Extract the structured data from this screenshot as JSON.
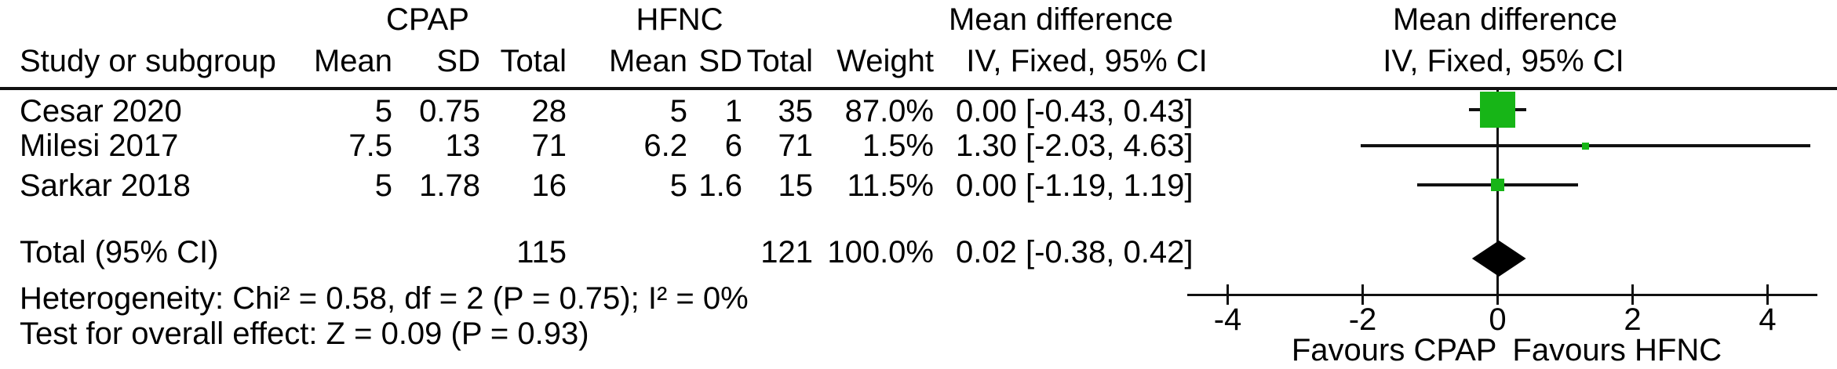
{
  "groups": {
    "cpap": "CPAP",
    "hfnc": "HFNC",
    "md_text": "Mean difference",
    "md_plot": "Mean difference"
  },
  "columns": {
    "study": "Study or subgroup",
    "cpap_mean": "Mean",
    "cpap_sd": "SD",
    "cpap_total": "Total",
    "hfnc_mean": "Mean",
    "hfnc_sd": "SD",
    "hfnc_total": "Total",
    "weight": "Weight",
    "ci_text": "IV, Fixed, 95% CI",
    "ci_plot": "IV, Fixed, 95% CI"
  },
  "rows": [
    {
      "study": "Cesar 2020",
      "cpap_mean": "5",
      "cpap_sd": "0.75",
      "cpap_total": "28",
      "hfnc_mean": "5",
      "hfnc_sd": "1",
      "hfnc_total": "35",
      "weight": "87.0%",
      "ci": "0.00 [-0.43, 0.43]"
    },
    {
      "study": "Milesi 2017",
      "cpap_mean": "7.5",
      "cpap_sd": "13",
      "cpap_total": "71",
      "hfnc_mean": "6.2",
      "hfnc_sd": "6",
      "hfnc_total": "71",
      "weight": "1.5%",
      "ci": "1.30 [-2.03, 4.63]"
    },
    {
      "study": "Sarkar 2018",
      "cpap_mean": "5",
      "cpap_sd": "1.78",
      "cpap_total": "16",
      "hfnc_mean": "5",
      "hfnc_sd": "1.6",
      "hfnc_total": "15",
      "weight": "11.5%",
      "ci": "0.00 [-1.19, 1.19]"
    }
  ],
  "total": {
    "label": "Total (95% CI)",
    "cpap_total": "115",
    "hfnc_total": "121",
    "weight": "100.0%",
    "ci": "0.02 [-0.38, 0.42]"
  },
  "footer": {
    "heterogeneity": "Heterogeneity: Chi² = 0.58, df = 2 (P = 0.75); I² = 0%",
    "overall_effect": "Test for overall effect: Z = 0.09 (P = 0.93)"
  },
  "axis_labels": {
    "favours_left": "Favours CPAP",
    "favours_right": "Favours HFNC"
  },
  "chart_data": {
    "type": "forest",
    "effect_measure": "Mean difference, IV, Fixed, 95% CI",
    "comparison": [
      "CPAP",
      "HFNC"
    ],
    "studies": [
      {
        "name": "Cesar 2020",
        "cpap": {
          "mean": 5,
          "sd": 0.75,
          "total": 28
        },
        "hfnc": {
          "mean": 5,
          "sd": 1,
          "total": 35
        },
        "weight_pct": 87.0,
        "estimate": 0.0,
        "ci_low": -0.43,
        "ci_high": 0.43
      },
      {
        "name": "Milesi 2017",
        "cpap": {
          "mean": 7.5,
          "sd": 13,
          "total": 71
        },
        "hfnc": {
          "mean": 6.2,
          "sd": 6,
          "total": 71
        },
        "weight_pct": 1.5,
        "estimate": 1.3,
        "ci_low": -2.03,
        "ci_high": 4.63
      },
      {
        "name": "Sarkar 2018",
        "cpap": {
          "mean": 5,
          "sd": 1.78,
          "total": 16
        },
        "hfnc": {
          "mean": 5,
          "sd": 1.6,
          "total": 15
        },
        "weight_pct": 11.5,
        "estimate": 0.0,
        "ci_low": -1.19,
        "ci_high": 1.19
      }
    ],
    "total": {
      "cpap_total": 115,
      "hfnc_total": 121,
      "weight_pct": 100.0,
      "estimate": 0.02,
      "ci_low": -0.38,
      "ci_high": 0.42
    },
    "heterogeneity": {
      "chi2": 0.58,
      "df": 2,
      "p": 0.75,
      "i2_pct": 0
    },
    "overall_effect": {
      "z": 0.09,
      "p": 0.93
    },
    "x_ticks": [
      -4,
      -2,
      0,
      2,
      4
    ],
    "x_range": [
      -4.6,
      4.75
    ],
    "xlabel_left": "Favours CPAP",
    "xlabel_right": "Favours HFNC",
    "marker_color": "#17b517",
    "diamond_color": "#000000",
    "line_color": "#111111"
  }
}
